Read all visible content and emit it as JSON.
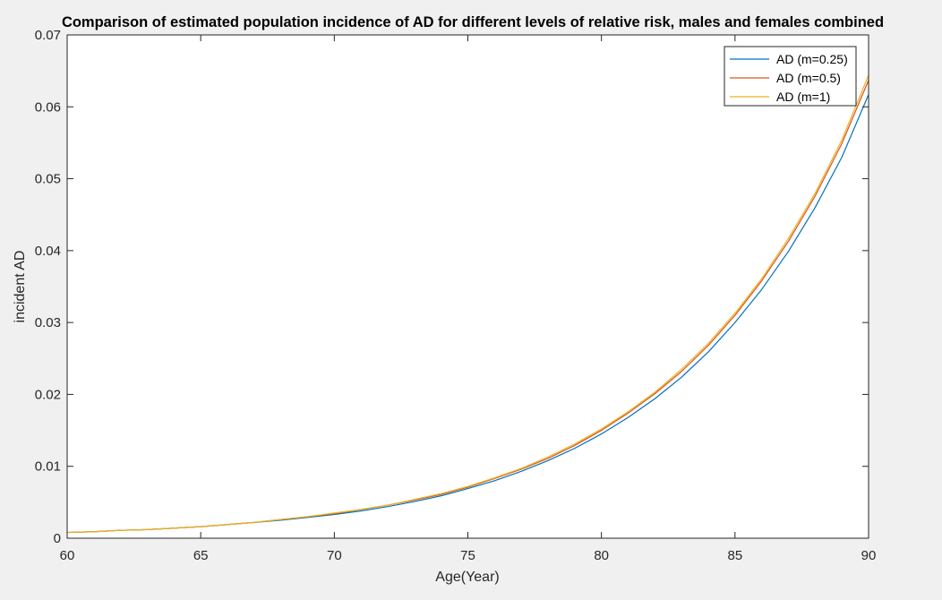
{
  "chart_data": {
    "type": "line",
    "title": "Comparison of estimated population incidence of AD for different levels of relative risk, males and females combined",
    "xlabel": "Age(Year)",
    "ylabel": "incident AD",
    "xlim": [
      60,
      90
    ],
    "ylim": [
      0,
      0.07
    ],
    "xticks": [
      "60",
      "65",
      "70",
      "75",
      "80",
      "85",
      "90"
    ],
    "yticks": [
      "0",
      "0.01",
      "0.02",
      "0.03",
      "0.04",
      "0.05",
      "0.06",
      "0.07"
    ],
    "grid": false,
    "legend_position": "top-right",
    "x": [
      60,
      61,
      62,
      63,
      64,
      65,
      66,
      67,
      68,
      69,
      70,
      71,
      72,
      73,
      74,
      75,
      76,
      77,
      78,
      79,
      80,
      81,
      82,
      83,
      84,
      85,
      86,
      87,
      88,
      89,
      90
    ],
    "series": [
      {
        "name": "AD (m=0.25)",
        "color": "#0072BD",
        "values": [
          0.0008,
          0.0009,
          0.0011,
          0.0012,
          0.0014,
          0.0016,
          0.0019,
          0.0022,
          0.0025,
          0.0029,
          0.0033,
          0.0038,
          0.0044,
          0.0051,
          0.0059,
          0.0069,
          0.008,
          0.0093,
          0.0108,
          0.0125,
          0.0145,
          0.0168,
          0.0194,
          0.0224,
          0.0259,
          0.03,
          0.0346,
          0.0399,
          0.046,
          0.053,
          0.0617
        ]
      },
      {
        "name": "AD (m=0.5)",
        "color": "#D95319",
        "values": [
          0.0008,
          0.0009,
          0.0011,
          0.0012,
          0.0014,
          0.0016,
          0.0019,
          0.0022,
          0.0026,
          0.003,
          0.0034,
          0.004,
          0.0046,
          0.0053,
          0.0061,
          0.0071,
          0.0083,
          0.0096,
          0.0111,
          0.0129,
          0.015,
          0.0174,
          0.0201,
          0.0232,
          0.0268,
          0.031,
          0.0358,
          0.0413,
          0.0476,
          0.0549,
          0.0637
        ]
      },
      {
        "name": "AD (m=1)",
        "color": "#EDB120",
        "values": [
          0.0008,
          0.0009,
          0.0011,
          0.0012,
          0.0014,
          0.0016,
          0.0019,
          0.0022,
          0.0026,
          0.003,
          0.0035,
          0.004,
          0.0046,
          0.0054,
          0.0062,
          0.0072,
          0.0084,
          0.0097,
          0.0113,
          0.0131,
          0.0152,
          0.0176,
          0.0203,
          0.0235,
          0.0271,
          0.0313,
          0.0361,
          0.0417,
          0.048,
          0.0554,
          0.0644
        ]
      }
    ]
  }
}
